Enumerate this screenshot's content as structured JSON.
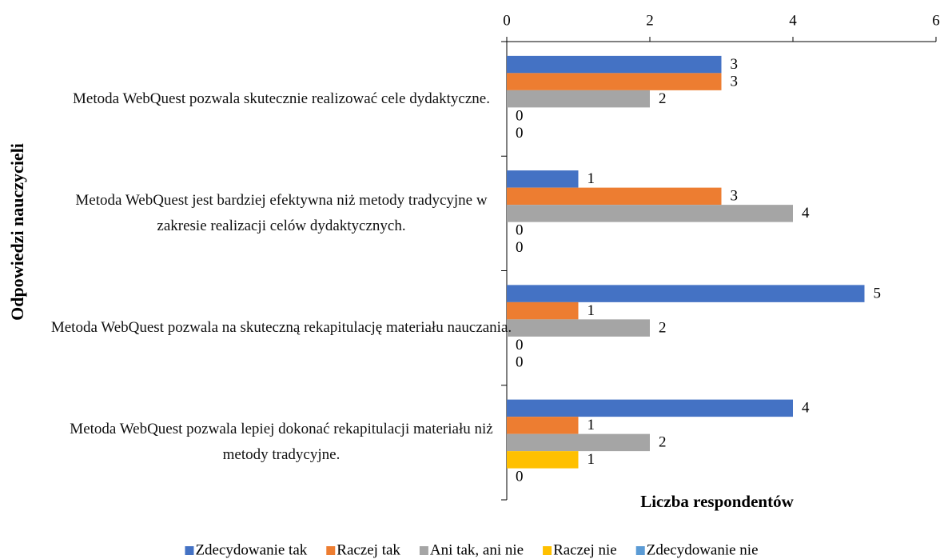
{
  "chart_data": {
    "type": "bar",
    "orientation": "horizontal",
    "x_label": "Liczba respondentów",
    "y_label": "Odpowiedzi nauczycieli",
    "categories": [
      "Metoda WebQuest pozwala skutecznie realizować cele dydaktyczne.",
      "Metoda WebQuest jest bardziej efektywna niż metody tradycyjne w zakresie realizacji celów dydaktycznych.",
      "Metoda WebQuest pozwala na skuteczną rekapitulację materiału nauczania.",
      "Metoda WebQuest pozwala lepiej dokonać rekapitulacji materiału niż metody tradycyjne."
    ],
    "series": [
      {
        "name": "Zdecydowanie tak",
        "color": "#4472c4",
        "values": [
          3,
          1,
          5,
          4
        ]
      },
      {
        "name": "Raczej tak",
        "color": "#ed7d31",
        "values": [
          3,
          3,
          1,
          1
        ]
      },
      {
        "name": "Ani tak, ani nie",
        "color": "#a5a5a5",
        "values": [
          2,
          4,
          2,
          2
        ]
      },
      {
        "name": "Raczej nie",
        "color": "#ffc000",
        "values": [
          0,
          0,
          0,
          1
        ]
      },
      {
        "name": "Zdecydowanie nie",
        "color": "#5b9bd5",
        "values": [
          0,
          0,
          0,
          0
        ]
      }
    ],
    "xlim": [
      0,
      6
    ],
    "xticks": [
      0,
      2,
      4,
      6
    ],
    "legend": "bottom"
  }
}
